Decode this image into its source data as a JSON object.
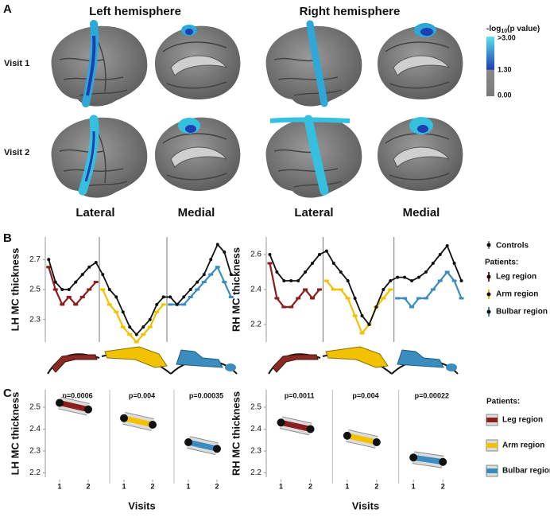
{
  "panel_labels": [
    "A",
    "B",
    "C"
  ],
  "panel_a": {
    "hemispheres": [
      "Left hemisphere",
      "Right hemisphere"
    ],
    "visits": [
      "Visit 1",
      "Visit 2"
    ],
    "views": [
      "Lateral",
      "Medial",
      "Lateral",
      "Medial"
    ],
    "colorbar": {
      "title_prefix": "-log",
      "title_sub": "10",
      "title_suffix": "(p value)",
      "labels": [
        ">3.00",
        "1.30",
        "0.00"
      ]
    }
  },
  "legend_b": {
    "controls": "Controls",
    "patients": "Patients:",
    "items": [
      "Leg region",
      "Arm region",
      "Bulbar region"
    ]
  },
  "legend_c": {
    "patients": "Patients:",
    "items": [
      "Leg region",
      "Arm region",
      "Bulbar region"
    ]
  },
  "chart_data": [
    {
      "type": "line",
      "ylabel": "LH MC thickness",
      "ylim": [
        2.15,
        2.85
      ],
      "yticks": [
        2.3,
        2.5,
        2.7
      ],
      "x": [
        1,
        2,
        3,
        4,
        5,
        6,
        7,
        8,
        9,
        10,
        11,
        12,
        13,
        14,
        15,
        16,
        17,
        18,
        19,
        20,
        21,
        22,
        23,
        24,
        25,
        26,
        27,
        28
      ],
      "series": [
        {
          "name": "Controls",
          "color": "#111111",
          "values": [
            2.7,
            2.55,
            2.5,
            2.5,
            2.55,
            2.6,
            2.65,
            2.68,
            2.6,
            2.5,
            2.45,
            2.35,
            2.25,
            2.2,
            2.25,
            2.3,
            2.4,
            2.45,
            2.45,
            2.4,
            2.45,
            2.5,
            2.55,
            2.6,
            2.7,
            2.8,
            2.75,
            2.6
          ]
        },
        {
          "name": "Leg region",
          "color": "#8b1e1e",
          "values": [
            2.65,
            2.5,
            2.4,
            2.45,
            2.4,
            2.45,
            2.5,
            2.55,
            null,
            null,
            null,
            null,
            null,
            null,
            null,
            null,
            null,
            null,
            null,
            null,
            null,
            null,
            null,
            null,
            null,
            null,
            null,
            null
          ]
        },
        {
          "name": "Arm region",
          "color": "#f2c200",
          "values": [
            null,
            null,
            null,
            null,
            null,
            null,
            null,
            null,
            2.5,
            2.4,
            2.35,
            2.25,
            2.2,
            2.15,
            2.2,
            2.25,
            2.35,
            2.4,
            null,
            null,
            null,
            null,
            null,
            null,
            null,
            null,
            null,
            null
          ]
        },
        {
          "name": "Bulbar region",
          "color": "#3b8dbd",
          "values": [
            null,
            null,
            null,
            null,
            null,
            null,
            null,
            null,
            null,
            null,
            null,
            null,
            null,
            null,
            null,
            null,
            null,
            null,
            2.4,
            2.4,
            2.4,
            2.45,
            2.5,
            2.55,
            2.6,
            2.65,
            2.55,
            2.45
          ]
        }
      ]
    },
    {
      "type": "line",
      "ylabel": "RH MC thickness",
      "ylim": [
        2.1,
        2.7
      ],
      "yticks": [
        2.2,
        2.4,
        2.6
      ],
      "x": [
        1,
        2,
        3,
        4,
        5,
        6,
        7,
        8,
        9,
        10,
        11,
        12,
        13,
        14,
        15,
        16,
        17,
        18,
        19,
        20,
        21,
        22,
        23,
        24,
        25,
        26,
        27,
        28
      ],
      "series": [
        {
          "name": "Controls",
          "color": "#111111",
          "values": [
            2.6,
            2.5,
            2.45,
            2.45,
            2.45,
            2.5,
            2.55,
            2.6,
            2.62,
            2.55,
            2.5,
            2.45,
            2.35,
            2.25,
            2.2,
            2.3,
            2.4,
            2.45,
            2.47,
            2.47,
            2.45,
            2.47,
            2.5,
            2.55,
            2.6,
            2.65,
            2.55,
            2.45
          ]
        },
        {
          "name": "Leg region",
          "color": "#8b1e1e",
          "values": [
            2.55,
            2.35,
            2.3,
            2.3,
            2.35,
            2.4,
            2.35,
            2.4,
            null,
            null,
            null,
            null,
            null,
            null,
            null,
            null,
            null,
            null,
            null,
            null,
            null,
            null,
            null,
            null,
            null,
            null,
            null,
            null
          ]
        },
        {
          "name": "Arm region",
          "color": "#f2c200",
          "values": [
            null,
            null,
            null,
            null,
            null,
            null,
            null,
            null,
            2.45,
            2.4,
            2.4,
            2.35,
            2.25,
            2.15,
            2.2,
            2.3,
            2.35,
            2.4,
            null,
            null,
            null,
            null,
            null,
            null,
            null,
            null,
            null,
            null
          ]
        },
        {
          "name": "Bulbar region",
          "color": "#3b8dbd",
          "values": [
            null,
            null,
            null,
            null,
            null,
            null,
            null,
            null,
            null,
            null,
            null,
            null,
            null,
            null,
            null,
            null,
            null,
            null,
            2.35,
            2.35,
            2.3,
            2.35,
            2.35,
            2.4,
            2.45,
            2.5,
            2.45,
            2.35
          ]
        }
      ]
    },
    {
      "type": "slope",
      "ylabel": "LH MC thickness",
      "xlabel": "Visits",
      "ylim": [
        2.18,
        2.58
      ],
      "yticks": [
        2.2,
        2.3,
        2.4,
        2.5
      ],
      "x": [
        1,
        2
      ],
      "xlim": [
        0.5,
        2.75
      ],
      "xticks": [
        1,
        2
      ],
      "series": [
        {
          "color": "#8b1e1e",
          "annotation": "p=0.0006",
          "values": [
            2.52,
            2.49
          ]
        },
        {
          "color": "#f2c200",
          "annotation": "p=0.004",
          "values": [
            2.45,
            2.42
          ]
        },
        {
          "color": "#3b8dbd",
          "annotation": "p=0.00035",
          "values": [
            2.34,
            2.31
          ]
        }
      ]
    },
    {
      "type": "slope",
      "ylabel": "RH MC thickness",
      "xlabel": "Visits",
      "ylim": [
        2.18,
        2.58
      ],
      "yticks": [
        2.2,
        2.3,
        2.4,
        2.5
      ],
      "x": [
        1,
        2
      ],
      "xlim": [
        0.5,
        2.75
      ],
      "xticks": [
        1,
        2
      ],
      "series": [
        {
          "color": "#8b1e1e",
          "annotation": "p=0.0011",
          "values": [
            2.43,
            2.4
          ]
        },
        {
          "color": "#f2c200",
          "annotation": "p=0.004",
          "values": [
            2.37,
            2.34
          ]
        },
        {
          "color": "#3b8dbd",
          "annotation": "p=0.00022",
          "values": [
            2.27,
            2.25
          ]
        }
      ]
    }
  ]
}
